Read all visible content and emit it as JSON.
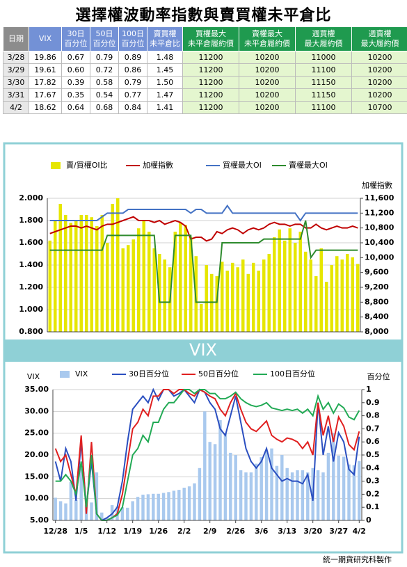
{
  "header": {
    "title": "選擇權波動率指數與賣買權未平倉比"
  },
  "table": {
    "columns": [
      [
        "日期"
      ],
      [
        "VIX"
      ],
      [
        "30日",
        "百分位"
      ],
      [
        "50日",
        "百分位"
      ],
      [
        "100日",
        "百分位"
      ],
      [
        "賣買權",
        "未平倉比"
      ],
      [
        "買權最大",
        "未平倉履約價"
      ],
      [
        "賣權最大",
        "未平倉履約價"
      ],
      [
        "週買權",
        "最大履約價"
      ],
      [
        "週賣權",
        "最大履約價"
      ]
    ],
    "rows": [
      [
        "3/28",
        "19.86",
        "0.67",
        "0.79",
        "0.89",
        "1.48",
        "11200",
        "10200",
        "11000",
        "10200"
      ],
      [
        "3/29",
        "19.61",
        "0.60",
        "0.72",
        "0.86",
        "1.45",
        "11200",
        "10200",
        "11100",
        "10200"
      ],
      [
        "3/30",
        "17.82",
        "0.39",
        "0.58",
        "0.79",
        "1.50",
        "11200",
        "10200",
        "11150",
        "10200"
      ],
      [
        "3/31",
        "17.67",
        "0.35",
        "0.54",
        "0.77",
        "1.47",
        "11200",
        "10200",
        "11150",
        "10200"
      ],
      [
        "4/2",
        "18.62",
        "0.64",
        "0.68",
        "0.84",
        "1.41",
        "11200",
        "10200",
        "11100",
        "10700"
      ]
    ]
  },
  "chart_data": [
    {
      "type": "bar-line",
      "categories": [
        null,
        null,
        null,
        null,
        null,
        null,
        null,
        null,
        null,
        null,
        null,
        null,
        null,
        null,
        null,
        null,
        null,
        null,
        null,
        null,
        null,
        null,
        null,
        null,
        null,
        null,
        null,
        null,
        null,
        null,
        null,
        null,
        null,
        null,
        null,
        null,
        null,
        null,
        null,
        null,
        null,
        null,
        null,
        null,
        null,
        null,
        null,
        null,
        null,
        null,
        null,
        null,
        null,
        null,
        null,
        null,
        null,
        null,
        null,
        null
      ],
      "y2_title": "加權指數",
      "ylim": [
        0.8,
        2.0
      ],
      "yticks": [
        {
          "value": 0.8,
          "label": "0.800"
        },
        {
          "value": 1.0,
          "label": "1.000"
        },
        {
          "value": 1.2,
          "label": "1.200"
        },
        {
          "value": 1.4,
          "label": "1.400"
        },
        {
          "value": 1.6,
          "label": "1.600"
        },
        {
          "value": 1.8,
          "label": "1.800"
        },
        {
          "value": 2.0,
          "label": "2.000"
        }
      ],
      "y2lim": [
        8000,
        11600
      ],
      "y2ticks": [
        {
          "value": 8000,
          "label": "8,000"
        },
        {
          "value": 8400,
          "label": "8,400"
        },
        {
          "value": 8800,
          "label": "8,800"
        },
        {
          "value": 9200,
          "label": "9,200"
        },
        {
          "value": 9600,
          "label": "9,600"
        },
        {
          "value": 10000,
          "label": "10,000"
        },
        {
          "value": 10400,
          "label": "10,400"
        },
        {
          "value": 10800,
          "label": "10,800"
        },
        {
          "value": 11200,
          "label": "11,200"
        },
        {
          "value": 11600,
          "label": "11,600"
        }
      ],
      "series": [
        {
          "name": "賣/買權OI比",
          "type": "bar",
          "color": "#e6e600",
          "values": [
            1.62,
            1.8,
            1.95,
            1.85,
            1.78,
            1.8,
            1.85,
            1.85,
            1.83,
            1.75,
            1.85,
            1.6,
            1.95,
            2.0,
            1.55,
            1.58,
            1.63,
            1.73,
            1.8,
            1.7,
            1.55,
            1.5,
            1.45,
            1.38,
            1.7,
            1.78,
            1.76,
            1.65,
            1.48,
            1.05,
            1.4,
            1.32,
            1.3,
            1.43,
            1.35,
            1.42,
            1.38,
            1.45,
            1.32,
            1.42,
            1.35,
            1.45,
            1.5,
            1.65,
            1.72,
            1.62,
            1.73,
            1.6,
            1.7,
            1.52,
            1.45,
            1.3,
            1.55,
            1.25,
            1.4,
            1.48,
            1.45,
            1.5,
            1.47,
            1.41
          ]
        },
        {
          "name": "加權指數",
          "type": "line",
          "axis": "y2",
          "color": "#c00000",
          "values": [
            10650,
            10700,
            10750,
            10800,
            10850,
            10850,
            10800,
            10850,
            10800,
            10750,
            10850,
            10900,
            10900,
            10950,
            11000,
            11050,
            11100,
            11000,
            11000,
            11000,
            10950,
            11000,
            10900,
            10950,
            11000,
            10950,
            10850,
            10500,
            10550,
            10550,
            10450,
            10500,
            10700,
            10650,
            10750,
            10800,
            10750,
            10650,
            10750,
            10800,
            10750,
            10800,
            10900,
            10950,
            10900,
            10900,
            10850,
            10900,
            10900,
            10800,
            10800,
            10900,
            10800,
            10750,
            10800,
            10850,
            10800,
            10800,
            10850,
            10800
          ]
        },
        {
          "name": "買權最大OI",
          "type": "line",
          "axis": "y2",
          "color": "#4472c4",
          "values": [
            11000,
            11000,
            11000,
            11000,
            11000,
            11000,
            11000,
            11000,
            11000,
            11000,
            11100,
            11200,
            11200,
            11200,
            11200,
            11300,
            11300,
            11300,
            11300,
            11300,
            11300,
            11300,
            11300,
            11300,
            11300,
            11300,
            11300,
            11200,
            11300,
            11300,
            11200,
            11200,
            11200,
            11200,
            11400,
            11200,
            11200,
            11200,
            11200,
            11200,
            11200,
            11200,
            11200,
            11200,
            11200,
            11200,
            11200,
            11200,
            11000,
            11200,
            11200,
            11200,
            11200,
            11200,
            11200,
            11200,
            11200,
            11200,
            11200,
            11200
          ]
        },
        {
          "name": "賣權最大OI",
          "type": "line",
          "axis": "y2",
          "color": "#2e8b2e",
          "values": [
            10200,
            10200,
            10200,
            10200,
            10200,
            10200,
            10200,
            10200,
            10200,
            10200,
            10200,
            10600,
            10600,
            10600,
            10600,
            10600,
            10600,
            10600,
            10600,
            10600,
            10600,
            8800,
            8800,
            8800,
            10600,
            10600,
            10600,
            10600,
            8800,
            8800,
            8800,
            8800,
            8800,
            10400,
            10400,
            10400,
            10400,
            10400,
            10400,
            10400,
            10400,
            10500,
            10500,
            10500,
            10500,
            10500,
            10500,
            10500,
            10500,
            11000,
            10000,
            10200,
            10200,
            10200,
            10200,
            10200,
            10200,
            10200,
            10200,
            10200
          ]
        }
      ]
    },
    {
      "type": "bar-line",
      "title": "VIX",
      "y_title": "VIX",
      "y2_title": "百分位",
      "categories": [
        "12/28",
        null,
        null,
        null,
        null,
        "1/5",
        null,
        null,
        null,
        null,
        "1/12",
        null,
        null,
        null,
        null,
        "1/19",
        null,
        null,
        null,
        null,
        "1/26",
        null,
        null,
        null,
        null,
        "2/2",
        null,
        null,
        null,
        null,
        "2/9",
        null,
        null,
        null,
        null,
        "2/26",
        null,
        null,
        null,
        null,
        "3/6",
        null,
        null,
        null,
        null,
        "3/13",
        null,
        null,
        null,
        null,
        "3/20",
        null,
        null,
        null,
        null,
        "3/27",
        null,
        null,
        null,
        "4/2"
      ],
      "ylim": [
        5,
        35
      ],
      "yticks": [
        {
          "value": 5,
          "label": "5.00"
        },
        {
          "value": 10,
          "label": "10.00"
        },
        {
          "value": 15,
          "label": "15.00"
        },
        {
          "value": 20,
          "label": "20.00"
        },
        {
          "value": 25,
          "label": "25.00"
        },
        {
          "value": 30,
          "label": "30.00"
        },
        {
          "value": 35,
          "label": "35.00"
        }
      ],
      "y2lim": [
        0,
        1
      ],
      "y2ticks": [
        0,
        0.1,
        0.2,
        0.3,
        0.4,
        0.5,
        0.6,
        0.7,
        0.8,
        0.9,
        1
      ],
      "series": [
        {
          "name": "VIX",
          "type": "bar",
          "color": "#a9c9ee",
          "values": [
            10.2,
            9.4,
            8.9,
            13.8,
            9.7,
            16.9,
            8.6,
            9.1,
            16.0,
            6.8,
            5.6,
            8.5,
            8.2,
            8.0,
            7.9,
            9.4,
            10.4,
            10.9,
            11.0,
            11.1,
            11.1,
            11.3,
            11.5,
            11.8,
            12.0,
            12.5,
            12.8,
            13.5,
            17.0,
            30.0,
            23.0,
            22.5,
            28.0,
            25.0,
            20.5,
            20.0,
            16.5,
            16.0,
            16.0,
            18.0,
            19.5,
            21.0,
            21.5,
            17.5,
            20.0,
            17.0,
            16.0,
            16.5,
            16.5,
            16.0,
            17.0,
            16.5,
            16.0,
            20.5,
            25.0,
            19.86,
            19.61,
            17.82,
            17.67,
            18.62
          ]
        },
        {
          "name": "30日百分位",
          "type": "line",
          "axis": "y2",
          "color": "#2b4fc0",
          "values": [
            0.45,
            0.3,
            0.55,
            0.45,
            0.15,
            0.6,
            0.1,
            0.45,
            0.05,
            0.0,
            0.02,
            0.05,
            0.1,
            0.3,
            0.6,
            0.85,
            0.9,
            0.95,
            0.9,
            1.0,
            0.92,
            1.0,
            1.0,
            0.95,
            0.97,
            1.0,
            0.95,
            0.9,
            1.0,
            0.98,
            0.9,
            0.85,
            0.7,
            0.65,
            0.8,
            0.95,
            0.75,
            0.55,
            0.45,
            0.4,
            0.45,
            0.55,
            0.4,
            0.35,
            0.3,
            0.32,
            0.3,
            0.3,
            0.28,
            0.35,
            0.15,
            0.9,
            0.5,
            0.72,
            0.45,
            0.67,
            0.6,
            0.39,
            0.35,
            0.64
          ]
        },
        {
          "name": "50日百分位",
          "type": "line",
          "axis": "y2",
          "color": "#e02020",
          "values": [
            0.55,
            0.45,
            0.5,
            0.35,
            0.2,
            0.65,
            0.05,
            0.6,
            0.05,
            0.0,
            0.0,
            0.02,
            0.05,
            0.2,
            0.45,
            0.7,
            0.75,
            0.85,
            0.8,
            0.95,
            0.95,
            1.0,
            1.0,
            0.97,
            1.0,
            1.0,
            0.97,
            0.95,
            1.0,
            0.98,
            0.95,
            0.93,
            0.85,
            0.8,
            0.9,
            0.97,
            0.85,
            0.75,
            0.7,
            0.68,
            0.72,
            0.76,
            0.65,
            0.62,
            0.6,
            0.63,
            0.62,
            0.6,
            0.55,
            0.6,
            0.5,
            0.9,
            0.65,
            0.8,
            0.6,
            0.79,
            0.72,
            0.58,
            0.54,
            0.68
          ]
        },
        {
          "name": "100日百分位",
          "type": "line",
          "axis": "y2",
          "color": "#22aa55",
          "values": [
            0.3,
            0.3,
            0.35,
            0.3,
            0.2,
            0.45,
            0.1,
            0.5,
            0.05,
            0.0,
            0.0,
            0.02,
            0.04,
            0.1,
            0.3,
            0.5,
            0.55,
            0.65,
            0.6,
            0.75,
            0.75,
            0.85,
            0.9,
            0.9,
            0.95,
            1.0,
            1.0,
            0.97,
            1.0,
            1.0,
            0.97,
            0.97,
            0.93,
            0.93,
            0.95,
            0.98,
            0.93,
            0.9,
            0.88,
            0.87,
            0.88,
            0.9,
            0.86,
            0.85,
            0.84,
            0.85,
            0.84,
            0.85,
            0.82,
            0.85,
            0.8,
            0.95,
            0.85,
            0.9,
            0.82,
            0.89,
            0.86,
            0.79,
            0.77,
            0.84
          ]
        }
      ]
    }
  ],
  "footer": "統一期貨研究科製作"
}
